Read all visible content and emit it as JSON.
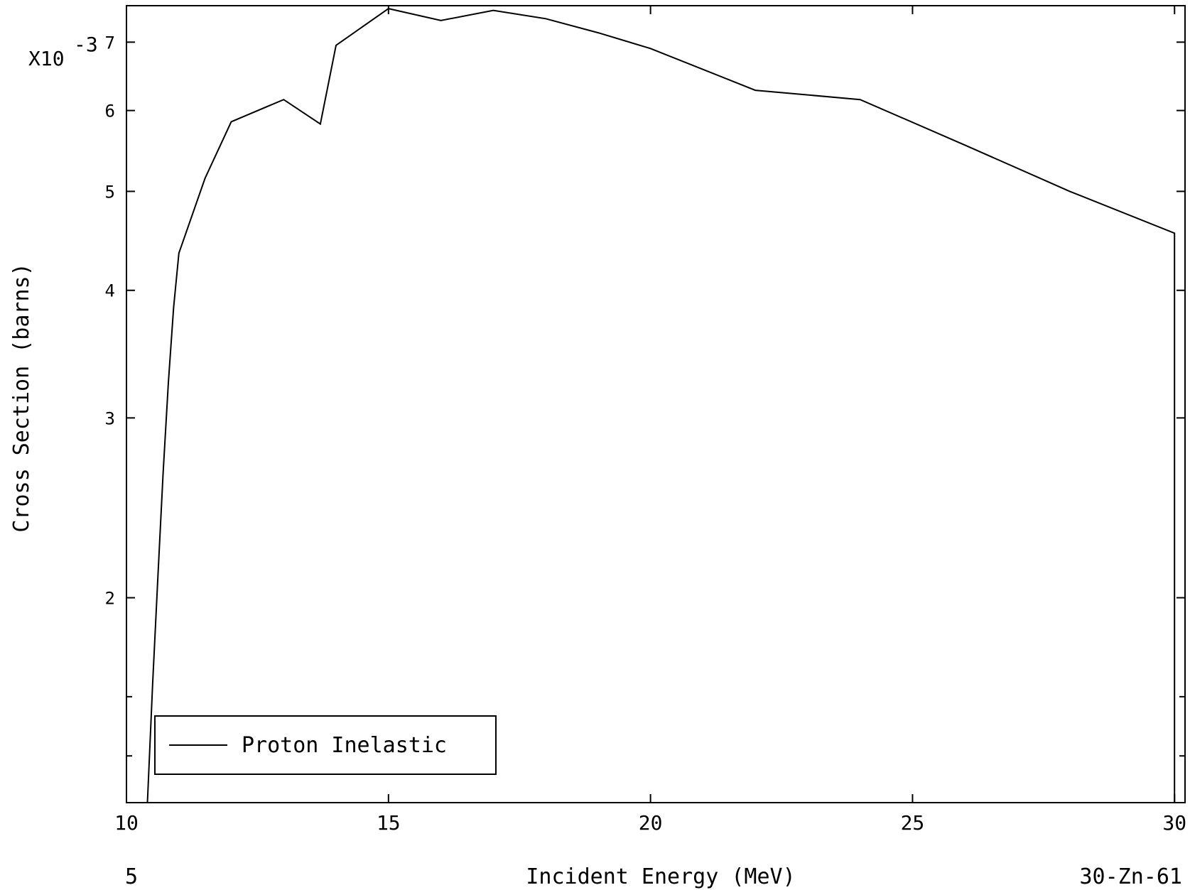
{
  "chart_data": {
    "type": "line",
    "xlabel": "Incident Energy (MeV)",
    "ylabel": "Cross Section (barns)",
    "y_multiplier": {
      "base": "X10",
      "exponent": "-3"
    },
    "xlim": [
      10,
      30.2
    ],
    "ylim": [
      1.26,
      7.6
    ],
    "y_scale": "log",
    "x_ticks": [
      {
        "value": 10,
        "label": "10"
      },
      {
        "value": 15,
        "label": "15"
      },
      {
        "value": 20,
        "label": "20"
      },
      {
        "value": 25,
        "label": "25"
      },
      {
        "value": 30,
        "label": "30"
      }
    ],
    "y_ticks": [
      {
        "value": 2,
        "label": "2"
      },
      {
        "value": 3,
        "label": "3"
      },
      {
        "value": 4,
        "label": "4"
      },
      {
        "value": 5,
        "label": "5"
      },
      {
        "value": 6,
        "label": "6"
      },
      {
        "value": 7,
        "label": "7"
      }
    ],
    "y_minor_ticks": [
      1.4,
      1.6
    ],
    "legend_position": "bottom-left",
    "series": [
      {
        "name": "Proton Inelastic",
        "x": [
          10.4,
          10.5,
          10.6,
          10.7,
          10.8,
          10.9,
          11.0,
          11.5,
          12.0,
          13.0,
          13.7,
          14.0,
          15.0,
          16.0,
          17.0,
          18.0,
          19.0,
          20.0,
          22.0,
          24.0,
          26.0,
          28.0,
          30.0,
          30.0
        ],
        "y": [
          1.26,
          1.65,
          2.1,
          2.65,
          3.25,
          3.85,
          4.35,
          5.15,
          5.85,
          6.15,
          5.82,
          6.95,
          7.55,
          7.35,
          7.52,
          7.38,
          7.15,
          6.9,
          6.28,
          6.15,
          5.55,
          5.0,
          4.55,
          1.26
        ]
      }
    ],
    "annotations": {
      "bottom_left": "5",
      "bottom_right": "30-Zn-61"
    }
  }
}
